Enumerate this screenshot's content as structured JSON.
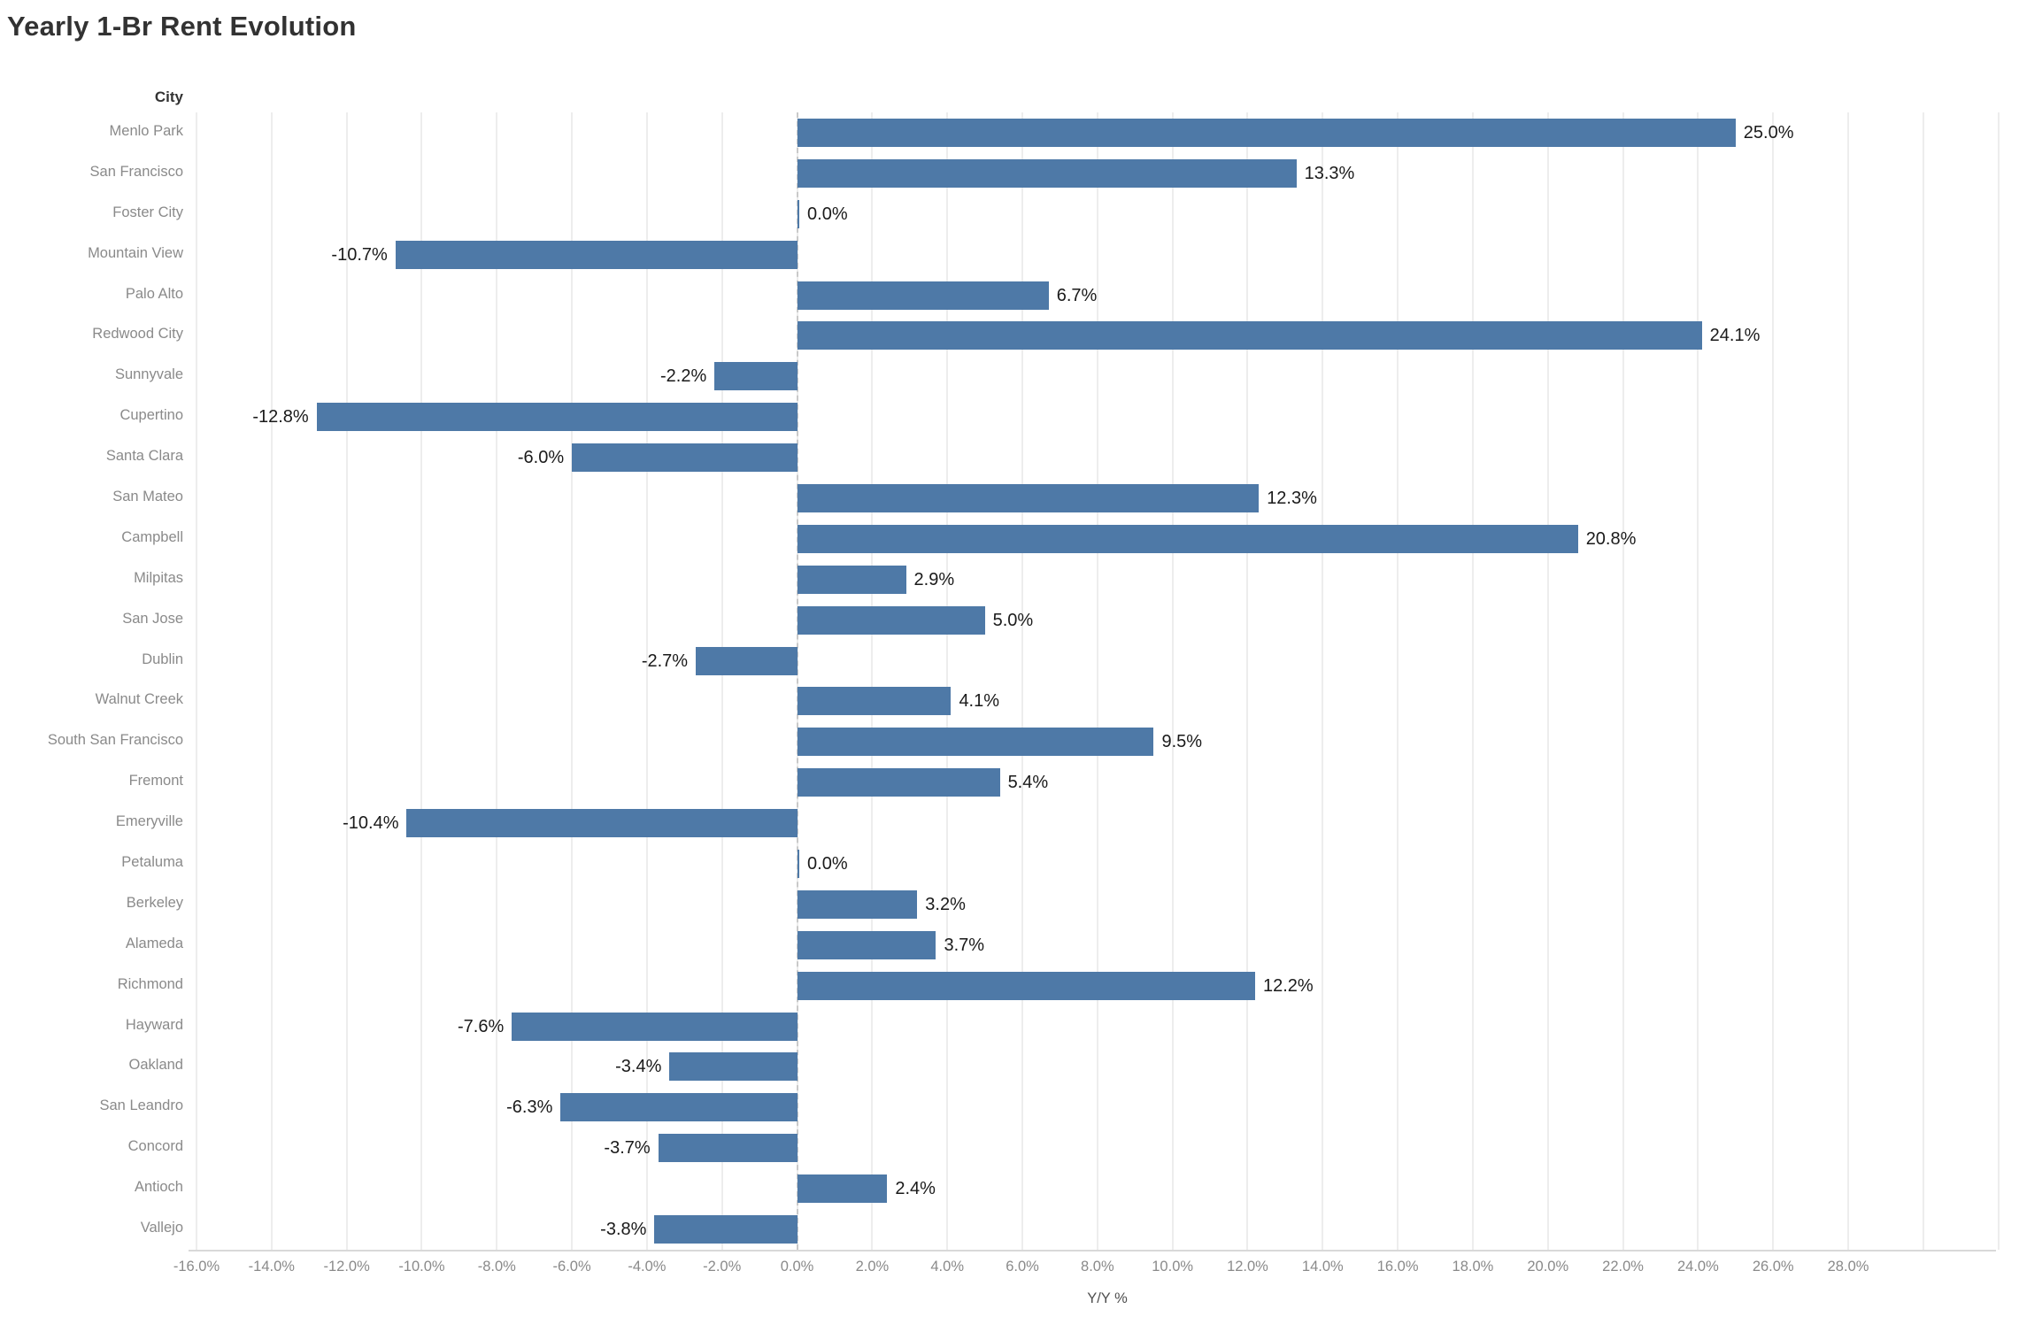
{
  "title": "Yearly 1-Br Rent Evolution",
  "colors": {
    "bar": "#4e79a7",
    "value_label": "#1a1a1a",
    "category_label": "#8a8a8a",
    "tick_label": "#8a8a8a",
    "grid": "#ededed",
    "zero_line": "#c9c9c9",
    "axis_line": "#d9d9d9",
    "title": "#323232"
  },
  "chart_data": {
    "type": "bar",
    "orientation": "horizontal",
    "title": "Yearly 1-Br Rent Evolution",
    "category_header": "City",
    "xlabel": "Y/Y %",
    "xlim": [
      -16,
      28
    ],
    "xtick_step": 2,
    "grid": true,
    "zero_line_style": "dashed",
    "bar_color": "#4e79a7",
    "categories": [
      "Menlo Park",
      "San Francisco",
      "Foster City",
      "Mountain View",
      "Palo Alto",
      "Redwood City",
      "Sunnyvale",
      "Cupertino",
      "Santa Clara",
      "San Mateo",
      "Campbell",
      "Milpitas",
      "San Jose",
      "Dublin",
      "Walnut Creek",
      "South San Francisco",
      "Fremont",
      "Emeryville",
      "Petaluma",
      "Berkeley",
      "Alameda",
      "Richmond",
      "Hayward",
      "Oakland",
      "San Leandro",
      "Concord",
      "Antioch",
      "Vallejo"
    ],
    "values": [
      25.0,
      13.3,
      0.0,
      -10.7,
      6.7,
      24.1,
      -2.2,
      -12.8,
      -6.0,
      12.3,
      20.8,
      2.9,
      5.0,
      -2.7,
      4.1,
      9.5,
      5.4,
      -10.4,
      0.0,
      3.2,
      3.7,
      12.2,
      -7.6,
      -3.4,
      -6.3,
      -3.7,
      2.4,
      -3.8
    ],
    "value_labels": [
      "25.0%",
      "13.3%",
      "0.0%",
      "-10.7%",
      "6.7%",
      "24.1%",
      "-2.2%",
      "-12.8%",
      "-6.0%",
      "12.3%",
      "20.8%",
      "2.9%",
      "5.0%",
      "-2.7%",
      "4.1%",
      "9.5%",
      "5.4%",
      "-10.4%",
      "0.0%",
      "3.2%",
      "3.7%",
      "12.2%",
      "-7.6%",
      "-3.4%",
      "-6.3%",
      "-3.7%",
      "2.4%",
      "-3.8%"
    ],
    "xtick_labels": [
      "-16.0%",
      "-14.0%",
      "-12.0%",
      "-10.0%",
      "-8.0%",
      "-6.0%",
      "-4.0%",
      "-2.0%",
      "0.0%",
      "2.0%",
      "4.0%",
      "6.0%",
      "8.0%",
      "10.0%",
      "12.0%",
      "14.0%",
      "16.0%",
      "18.0%",
      "20.0%",
      "22.0%",
      "24.0%",
      "26.0%",
      "28.0%"
    ]
  }
}
